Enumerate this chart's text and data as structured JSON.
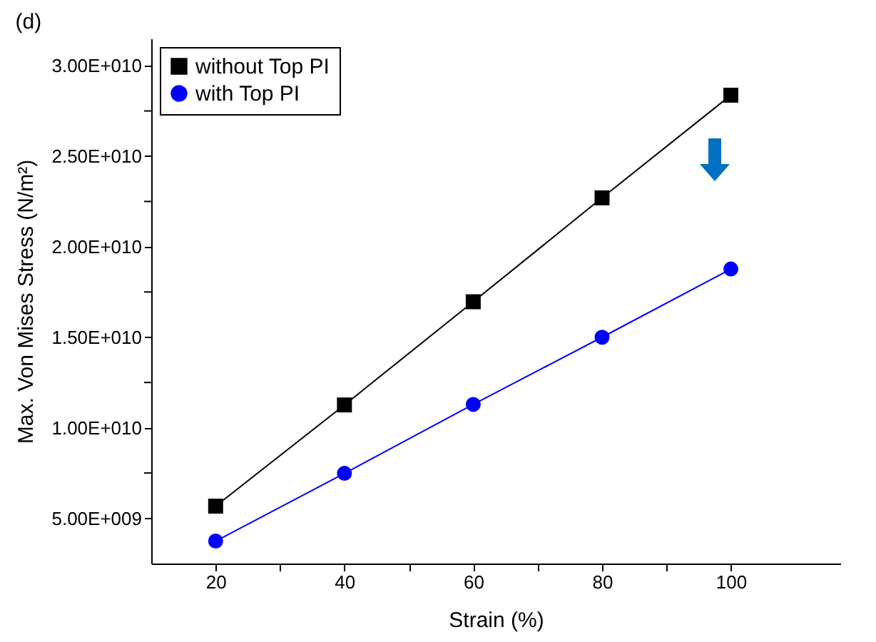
{
  "chart_data": {
    "type": "line",
    "title": "(d)",
    "xlabel": "Strain (%)",
    "ylabel": "Max. Von Mises Stress (N/m²)",
    "x": [
      20,
      40,
      60,
      80,
      100
    ],
    "series": [
      {
        "name": "without Top PI",
        "color": "#000000",
        "marker": "square",
        "values": [
          5670000000.0,
          11260000000.0,
          16960000000.0,
          22700000000.0,
          28370000000.0
        ]
      },
      {
        "name": "with Top PI",
        "color": "#0000ff",
        "marker": "circle",
        "values": [
          3740000000.0,
          7480000000.0,
          11290000000.0,
          15000000000.0,
          18770000000.0
        ]
      }
    ],
    "xlim": [
      10,
      117
    ],
    "ylim": [
      2500000000.0,
      31500000000.0
    ],
    "xticks": [
      20,
      {
        "value": 30,
        "label": null
      },
      40,
      {
        "value": 50,
        "label": null
      },
      60,
      {
        "value": 70,
        "label": null
      },
      80,
      {
        "value": 90,
        "label": null
      },
      100
    ],
    "yticks": [
      {
        "value": 5000000000.0,
        "label": "5.00E+009"
      },
      {
        "value": 7500000000.0,
        "label": null
      },
      {
        "value": 10000000000.0,
        "label": "1.00E+010"
      },
      {
        "value": 12500000000.0,
        "label": null
      },
      {
        "value": 15000000000.0,
        "label": "1.50E+010"
      },
      {
        "value": 17500000000.0,
        "label": null
      },
      {
        "value": 20000000000.0,
        "label": "2.00E+010"
      },
      {
        "value": 22500000000.0,
        "label": null
      },
      {
        "value": 25000000000.0,
        "label": "2.50E+010"
      },
      {
        "value": 27500000000.0,
        "label": null
      },
      {
        "value": 30000000000.0,
        "label": "3.00E+010"
      }
    ],
    "grid": false,
    "legend": "top left",
    "line_style": "solid"
  }
}
